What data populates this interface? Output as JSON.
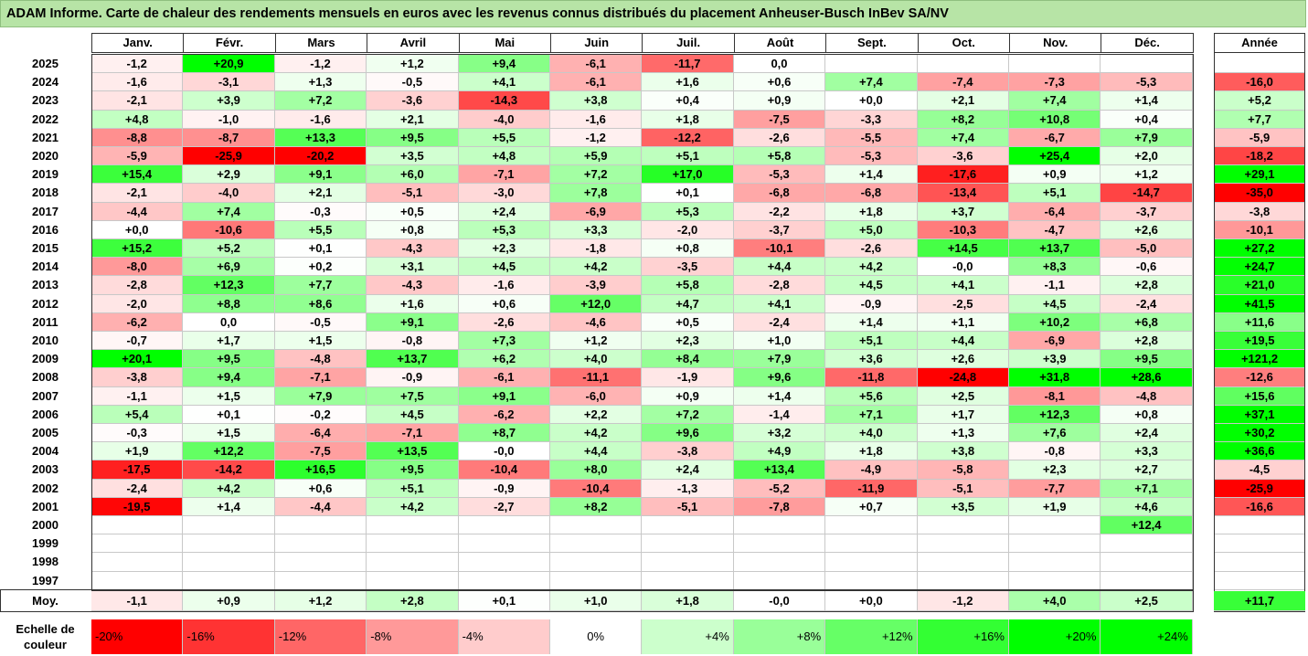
{
  "title": "ADAM Informe. Carte de chaleur des rendements mensuels en euros avec les revenus connus distribués du placement Anheuser-Busch InBev SA/NV",
  "colors": {
    "title_bg": "#b7e4a6",
    "neg_max": "#ff0000",
    "pos_max": "#00ff00",
    "neutral": "#ffffff"
  },
  "chart_data": {
    "type": "heatmap",
    "title": "ADAM Informe. Carte de chaleur des rendements mensuels en euros avec les revenus connus distribués du placement Anheuser-Busch InBev SA/NV",
    "months": [
      "Janv.",
      "Févr.",
      "Mars",
      "Avril",
      "Mai",
      "Juin",
      "Juil.",
      "Août",
      "Sept.",
      "Oct.",
      "Nov.",
      "Déc."
    ],
    "year_header": "Année",
    "rows": [
      {
        "year": "2025",
        "values": [
          "-1,2",
          "+20,9",
          "-1,2",
          "+1,2",
          "+9,4",
          "-6,1",
          "-11,7",
          "0,0",
          "",
          "",
          "",
          ""
        ],
        "annual": ""
      },
      {
        "year": "2024",
        "values": [
          "-1,6",
          "-3,1",
          "+1,3",
          "-0,5",
          "+4,1",
          "-6,1",
          "+1,6",
          "+0,6",
          "+7,4",
          "-7,4",
          "-7,3",
          "-5,3"
        ],
        "annual": "-16,0"
      },
      {
        "year": "2023",
        "values": [
          "-2,1",
          "+3,9",
          "+7,2",
          "-3,6",
          "-14,3",
          "+3,8",
          "+0,4",
          "+0,9",
          "+0,0",
          "+2,1",
          "+7,4",
          "+1,4"
        ],
        "annual": "+5,2"
      },
      {
        "year": "2022",
        "values": [
          "+4,8",
          "-1,0",
          "-1,6",
          "+2,1",
          "-4,0",
          "-1,6",
          "+1,8",
          "-7,5",
          "-3,3",
          "+8,2",
          "+10,8",
          "+0,4"
        ],
        "annual": "+7,7"
      },
      {
        "year": "2021",
        "values": [
          "-8,8",
          "-8,7",
          "+13,3",
          "+9,5",
          "+5,5",
          "-1,2",
          "-12,2",
          "-2,6",
          "-5,5",
          "+7,4",
          "-6,7",
          "+7,9"
        ],
        "annual": "-5,9"
      },
      {
        "year": "2020",
        "values": [
          "-5,9",
          "-25,9",
          "-20,2",
          "+3,5",
          "+4,8",
          "+5,9",
          "+5,1",
          "+5,8",
          "-5,3",
          "-3,6",
          "+25,4",
          "+2,0"
        ],
        "annual": "-18,2"
      },
      {
        "year": "2019",
        "values": [
          "+15,4",
          "+2,9",
          "+9,1",
          "+6,0",
          "-7,1",
          "+7,2",
          "+17,0",
          "-5,3",
          "+1,4",
          "-17,6",
          "+0,9",
          "+1,2"
        ],
        "annual": "+29,1"
      },
      {
        "year": "2018",
        "values": [
          "-2,1",
          "-4,0",
          "+2,1",
          "-5,1",
          "-3,0",
          "+7,8",
          "+0,1",
          "-6,8",
          "-6,8",
          "-13,4",
          "+5,1",
          "-14,7"
        ],
        "annual": "-35,0"
      },
      {
        "year": "2017",
        "values": [
          "-4,4",
          "+7,4",
          "-0,3",
          "+0,5",
          "+2,4",
          "-6,9",
          "+5,3",
          "-2,2",
          "+1,8",
          "+3,7",
          "-6,4",
          "-3,7"
        ],
        "annual": "-3,8"
      },
      {
        "year": "2016",
        "values": [
          "+0,0",
          "-10,6",
          "+5,5",
          "+0,8",
          "+5,3",
          "+3,3",
          "-2,0",
          "-3,7",
          "+5,0",
          "-10,3",
          "-4,7",
          "+2,6"
        ],
        "annual": "-10,1"
      },
      {
        "year": "2015",
        "values": [
          "+15,2",
          "+5,2",
          "+0,1",
          "-4,3",
          "+2,3",
          "-1,8",
          "+0,8",
          "-10,1",
          "-2,6",
          "+14,5",
          "+13,7",
          "-5,0"
        ],
        "annual": "+27,2"
      },
      {
        "year": "2014",
        "values": [
          "-8,0",
          "+6,9",
          "+0,2",
          "+3,1",
          "+4,5",
          "+4,2",
          "-3,5",
          "+4,4",
          "+4,2",
          "-0,0",
          "+8,3",
          "-0,6"
        ],
        "annual": "+24,7"
      },
      {
        "year": "2013",
        "values": [
          "-2,8",
          "+12,3",
          "+7,7",
          "-4,3",
          "-1,6",
          "-3,9",
          "+5,8",
          "-2,8",
          "+4,5",
          "+4,1",
          "-1,1",
          "+2,8"
        ],
        "annual": "+21,0"
      },
      {
        "year": "2012",
        "values": [
          "-2,0",
          "+8,8",
          "+8,6",
          "+1,6",
          "+0,6",
          "+12,0",
          "+4,7",
          "+4,1",
          "-0,9",
          "-2,5",
          "+4,5",
          "-2,4"
        ],
        "annual": "+41,5"
      },
      {
        "year": "2011",
        "values": [
          "-6,2",
          "0,0",
          "-0,5",
          "+9,1",
          "-2,6",
          "-4,6",
          "+0,5",
          "-2,4",
          "+1,4",
          "+1,1",
          "+10,2",
          "+6,8"
        ],
        "annual": "+11,6"
      },
      {
        "year": "2010",
        "values": [
          "-0,7",
          "+1,7",
          "+1,5",
          "-0,8",
          "+7,3",
          "+1,2",
          "+2,3",
          "+1,0",
          "+5,1",
          "+4,4",
          "-6,9",
          "+2,8"
        ],
        "annual": "+19,5"
      },
      {
        "year": "2009",
        "values": [
          "+20,1",
          "+9,5",
          "-4,8",
          "+13,7",
          "+6,2",
          "+4,0",
          "+8,4",
          "+7,9",
          "+3,6",
          "+2,6",
          "+3,9",
          "+9,5"
        ],
        "annual": "+121,2"
      },
      {
        "year": "2008",
        "values": [
          "-3,8",
          "+9,4",
          "-7,1",
          "-0,9",
          "-6,1",
          "-11,1",
          "-1,9",
          "+9,6",
          "-11,8",
          "-24,8",
          "+31,8",
          "+28,6"
        ],
        "annual": "-12,6"
      },
      {
        "year": "2007",
        "values": [
          "-1,1",
          "+1,5",
          "+7,9",
          "+7,5",
          "+9,1",
          "-6,0",
          "+0,9",
          "+1,4",
          "+5,6",
          "+2,5",
          "-8,1",
          "-4,8"
        ],
        "annual": "+15,6"
      },
      {
        "year": "2006",
        "values": [
          "+5,4",
          "+0,1",
          "-0,2",
          "+4,5",
          "-6,2",
          "+2,2",
          "+7,2",
          "-1,4",
          "+7,1",
          "+1,7",
          "+12,3",
          "+0,8"
        ],
        "annual": "+37,1"
      },
      {
        "year": "2005",
        "values": [
          "-0,3",
          "+1,5",
          "-6,4",
          "-7,1",
          "+8,7",
          "+4,2",
          "+9,6",
          "+3,2",
          "+4,0",
          "+1,3",
          "+7,6",
          "+2,4"
        ],
        "annual": "+30,2"
      },
      {
        "year": "2004",
        "values": [
          "+1,9",
          "+12,2",
          "-7,5",
          "+13,5",
          "-0,0",
          "+4,4",
          "-3,8",
          "+4,9",
          "+1,8",
          "+3,8",
          "-0,8",
          "+3,3"
        ],
        "annual": "+36,6"
      },
      {
        "year": "2003",
        "values": [
          "-17,5",
          "-14,2",
          "+16,5",
          "+9,5",
          "-10,4",
          "+8,0",
          "+2,4",
          "+13,4",
          "-4,9",
          "-5,8",
          "+2,3",
          "+2,7"
        ],
        "annual": "-4,5"
      },
      {
        "year": "2002",
        "values": [
          "-2,4",
          "+4,2",
          "+0,6",
          "+5,1",
          "-0,9",
          "-10,4",
          "-1,3",
          "-5,2",
          "-11,9",
          "-5,1",
          "-7,7",
          "+7,1"
        ],
        "annual": "-25,9"
      },
      {
        "year": "2001",
        "values": [
          "-19,5",
          "+1,4",
          "-4,4",
          "+4,2",
          "-2,7",
          "+8,2",
          "-5,1",
          "-7,8",
          "+0,7",
          "+3,5",
          "+1,9",
          "+4,6"
        ],
        "annual": "-16,6"
      },
      {
        "year": "2000",
        "values": [
          "",
          "",
          "",
          "",
          "",
          "",
          "",
          "",
          "",
          "",
          "",
          "+12,4"
        ],
        "annual": ""
      },
      {
        "year": "1999",
        "values": [
          "",
          "",
          "",
          "",
          "",
          "",
          "",
          "",
          "",
          "",
          "",
          ""
        ],
        "annual": ""
      },
      {
        "year": "1998",
        "values": [
          "",
          "",
          "",
          "",
          "",
          "",
          "",
          "",
          "",
          "",
          "",
          ""
        ],
        "annual": ""
      },
      {
        "year": "1997",
        "values": [
          "",
          "",
          "",
          "",
          "",
          "",
          "",
          "",
          "",
          "",
          "",
          ""
        ],
        "annual": ""
      }
    ],
    "average": {
      "label": "Moy.",
      "values": [
        "-1,1",
        "+0,9",
        "+1,2",
        "+2,8",
        "+0,1",
        "+1,0",
        "+1,8",
        "-0,0",
        "+0,0",
        "-1,2",
        "+4,0",
        "+2,5"
      ],
      "annual": "+11,7"
    },
    "scale": {
      "label": "Echelle de couleur",
      "items": [
        {
          "label": "-20%",
          "value": -20
        },
        {
          "label": "-16%",
          "value": -16
        },
        {
          "label": "-12%",
          "value": -12
        },
        {
          "label": "-8%",
          "value": -8
        },
        {
          "label": "-4%",
          "value": -4
        },
        {
          "label": "0%",
          "value": 0
        },
        {
          "label": "+4%",
          "value": 4
        },
        {
          "label": "+8%",
          "value": 8
        },
        {
          "label": "+12%",
          "value": 12
        },
        {
          "label": "+16%",
          "value": 16
        },
        {
          "label": "+20%",
          "value": 20
        },
        {
          "label": "+24%",
          "value": 24
        }
      ]
    }
  }
}
